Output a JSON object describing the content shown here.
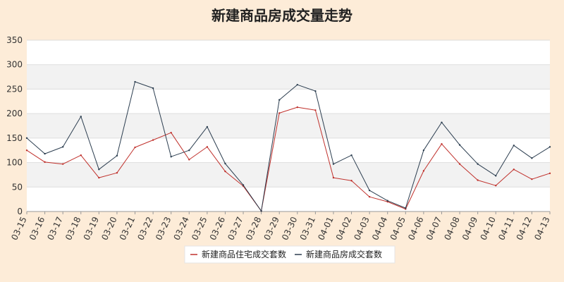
{
  "chart_data": {
    "type": "line",
    "title": "新建商品房成交量走势",
    "xlabel": "",
    "ylabel": "",
    "ylim": [
      0,
      350
    ],
    "yticks": [
      0,
      50,
      100,
      150,
      200,
      250,
      300,
      350
    ],
    "grid": true,
    "legend_position": "bottom",
    "categories": [
      "03-15",
      "03-16",
      "03-17",
      "03-18",
      "03-19",
      "03-20",
      "03-21",
      "03-22",
      "03-23",
      "03-24",
      "03-25",
      "03-26",
      "03-27",
      "03-28",
      "03-29",
      "03-30",
      "03-31",
      "04-01",
      "04-02",
      "04-03",
      "04-04",
      "04-05",
      "04-06",
      "04-07",
      "04-08",
      "04-09",
      "04-10",
      "04-11",
      "04-12",
      "04-13"
    ],
    "series": [
      {
        "name": "新建商品住宅成交套数",
        "color": "#c0312c",
        "values": [
          125,
          101,
          97,
          115,
          69,
          79,
          131,
          146,
          161,
          106,
          132,
          82,
          52,
          1,
          201,
          213,
          207,
          69,
          63,
          30,
          20,
          5,
          83,
          138,
          97,
          64,
          53,
          86,
          66,
          78
        ]
      },
      {
        "name": "新建商品房成交套数",
        "color": "#2c3e50",
        "values": [
          150,
          118,
          132,
          194,
          86,
          114,
          265,
          252,
          112,
          125,
          173,
          98,
          54,
          1,
          228,
          259,
          246,
          97,
          115,
          43,
          22,
          7,
          125,
          182,
          136,
          97,
          73,
          135,
          109,
          132
        ]
      }
    ]
  }
}
